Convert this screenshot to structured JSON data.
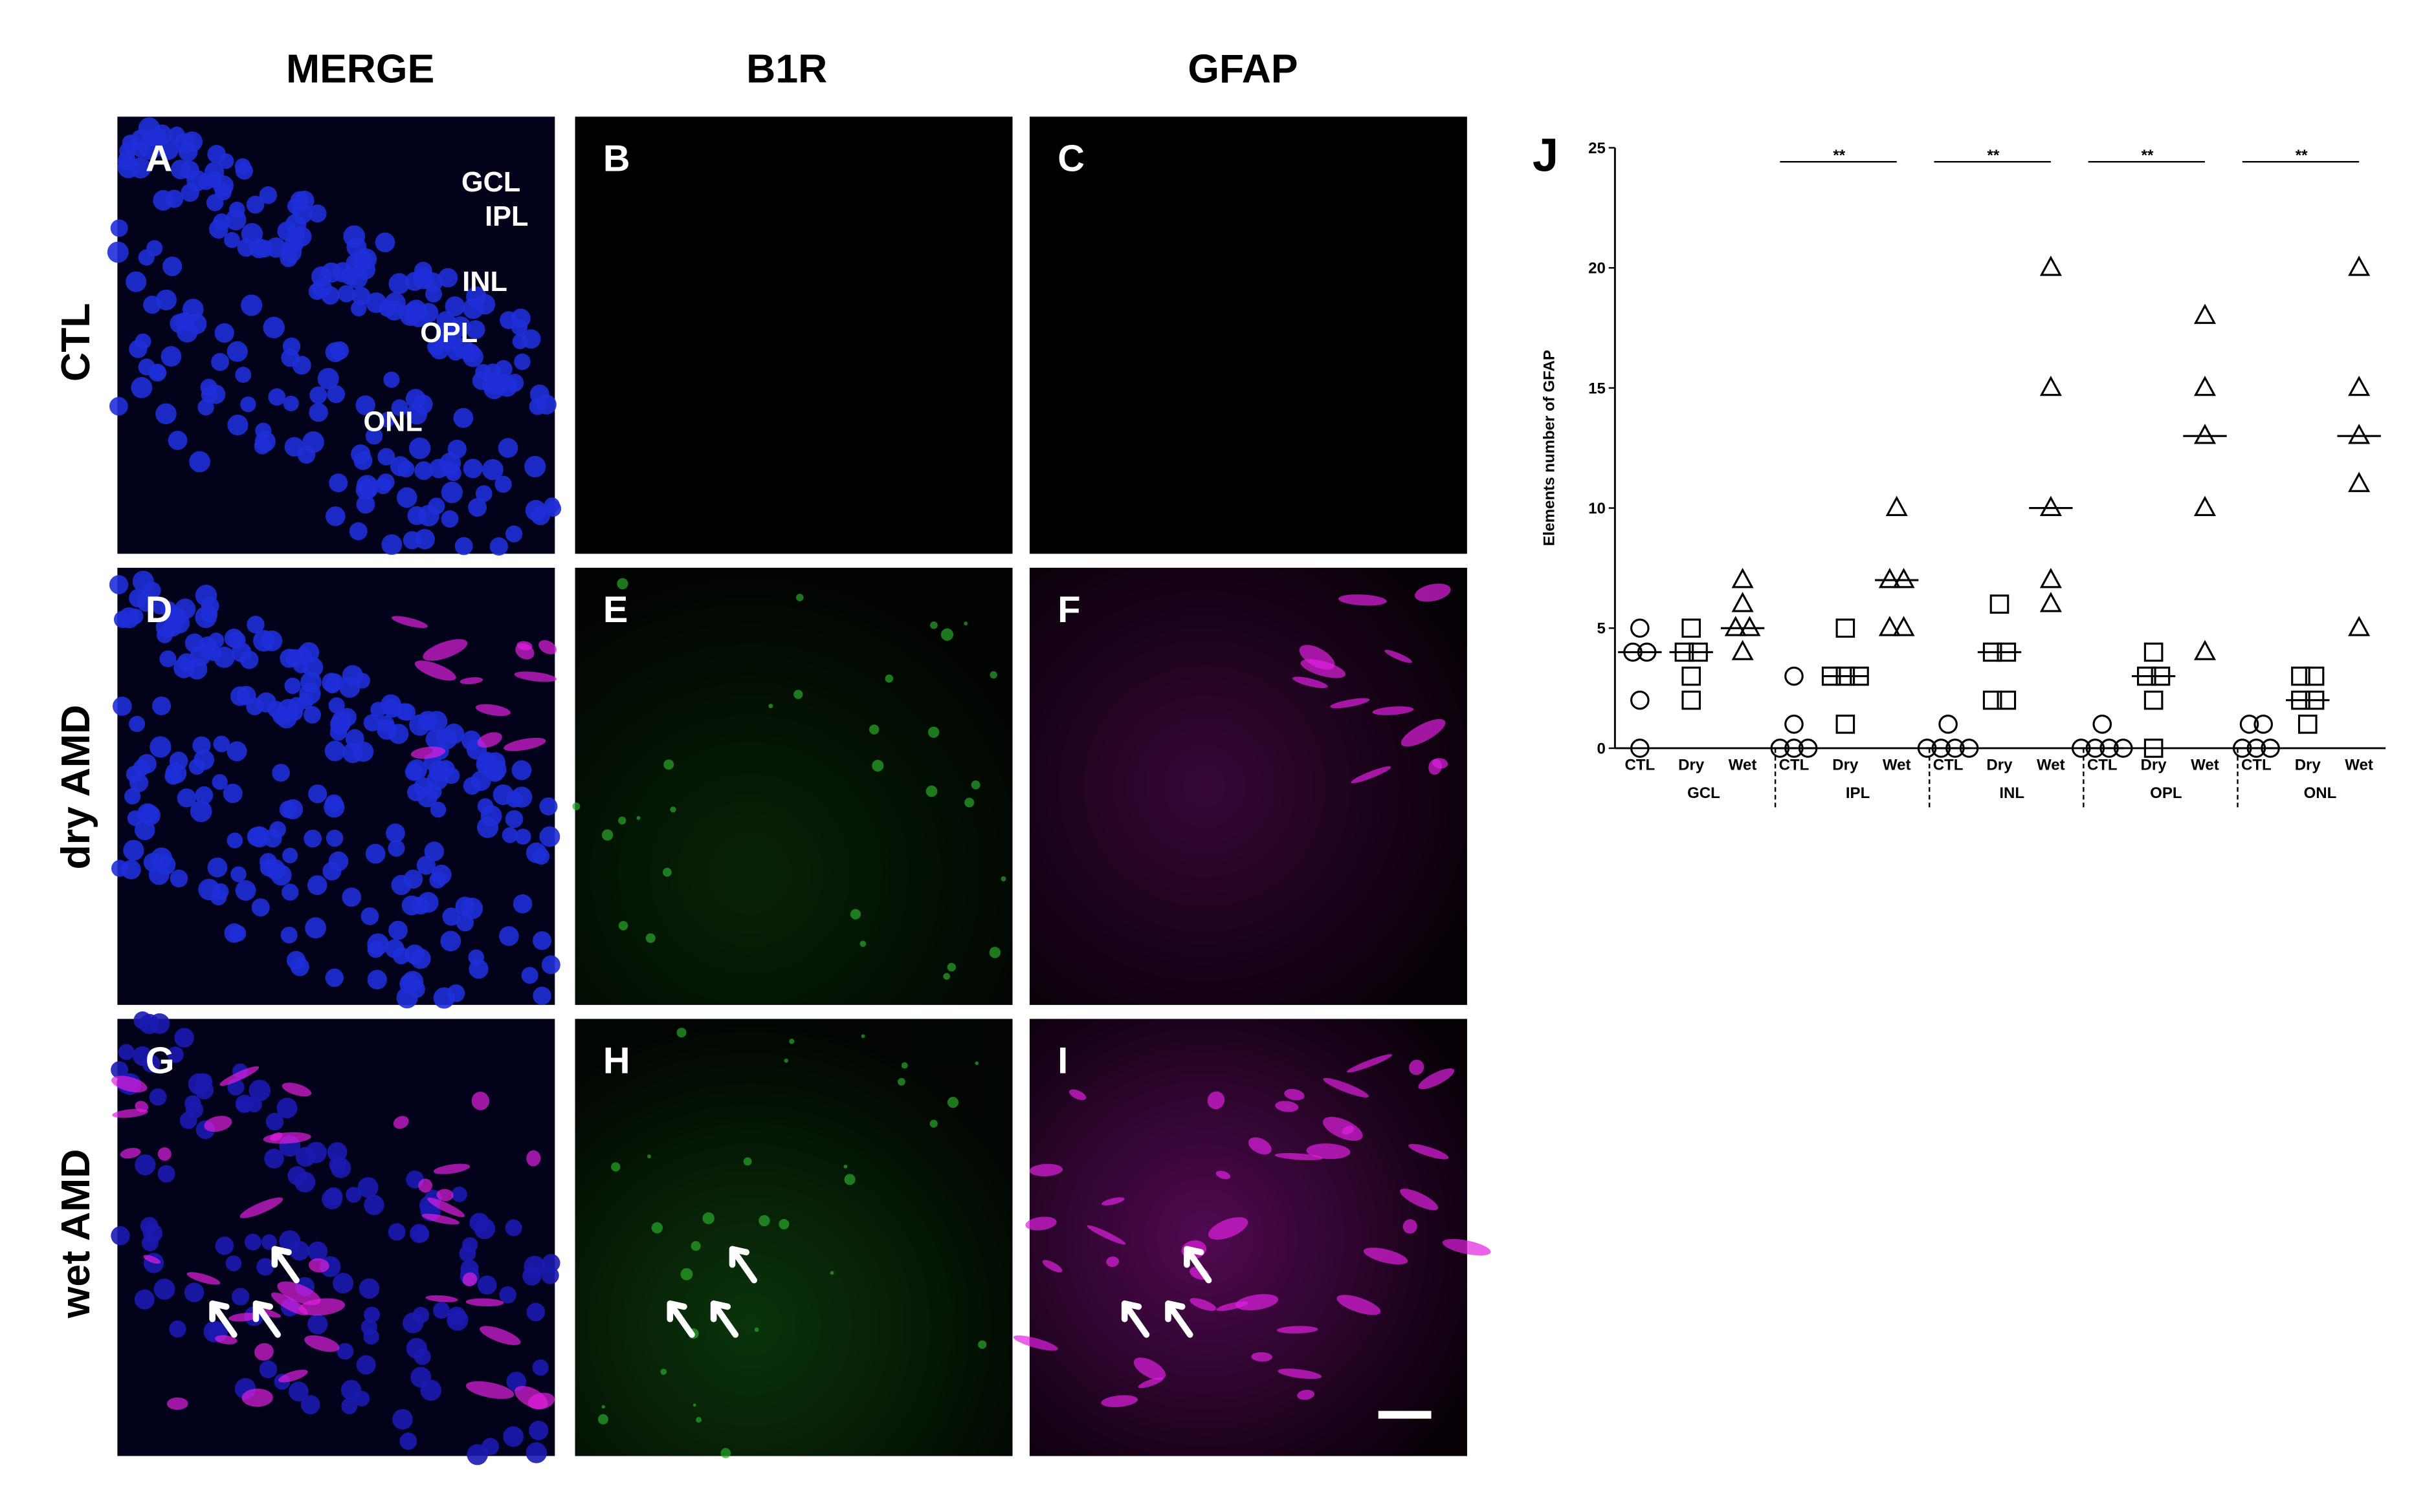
{
  "column_headers": [
    "MERGE",
    "B1R",
    "GFAP"
  ],
  "row_labels": [
    "CTL",
    "dry AMD",
    "wet AMD"
  ],
  "panel_letters": [
    "A",
    "B",
    "C",
    "D",
    "E",
    "F",
    "G",
    "H",
    "I"
  ],
  "layer_labels": [
    "GCL",
    "IPL",
    "INL",
    "OPL",
    "ONL"
  ],
  "chart_data": {
    "type": "scatter",
    "panel_letter": "J",
    "y_label": "Elements number of GFAP",
    "ylim": [
      0,
      25
    ],
    "yticks": [
      0,
      5,
      10,
      15,
      20,
      25
    ],
    "groups": [
      "GCL",
      "IPL",
      "INL",
      "OPL",
      "ONL"
    ],
    "categories": [
      "CTL",
      "Dry",
      "Wet",
      "CTL",
      "Dry",
      "Wet",
      "CTL",
      "Dry",
      "Wet",
      "CTL",
      "Dry",
      "Wet",
      "CTL",
      "Dry",
      "Wet"
    ],
    "values": [
      [
        5,
        4,
        4,
        2,
        0
      ],
      [
        5,
        4,
        4,
        3,
        2
      ],
      [
        7,
        6,
        5,
        5,
        4
      ],
      [
        3,
        1,
        0,
        0,
        0
      ],
      [
        5,
        3,
        3,
        3,
        1
      ],
      [
        10,
        7,
        7,
        5,
        5
      ],
      [
        1,
        0,
        0,
        0,
        0
      ],
      [
        6,
        4,
        4,
        2,
        2
      ],
      [
        20,
        15,
        10,
        7,
        6
      ],
      [
        1,
        0,
        0,
        0,
        0
      ],
      [
        4,
        3,
        3,
        2,
        0
      ],
      [
        18,
        15,
        13,
        10,
        4
      ],
      [
        1,
        1,
        0,
        0,
        0
      ],
      [
        3,
        3,
        2,
        2,
        1
      ],
      [
        20,
        15,
        13,
        11,
        5
      ]
    ],
    "medians": [
      4,
      4,
      5,
      0,
      3,
      7,
      0,
      4,
      10,
      0,
      3,
      13,
      0,
      2,
      13
    ],
    "significance": [
      null,
      "**",
      "**",
      "**",
      "**"
    ],
    "color": "#000000"
  }
}
